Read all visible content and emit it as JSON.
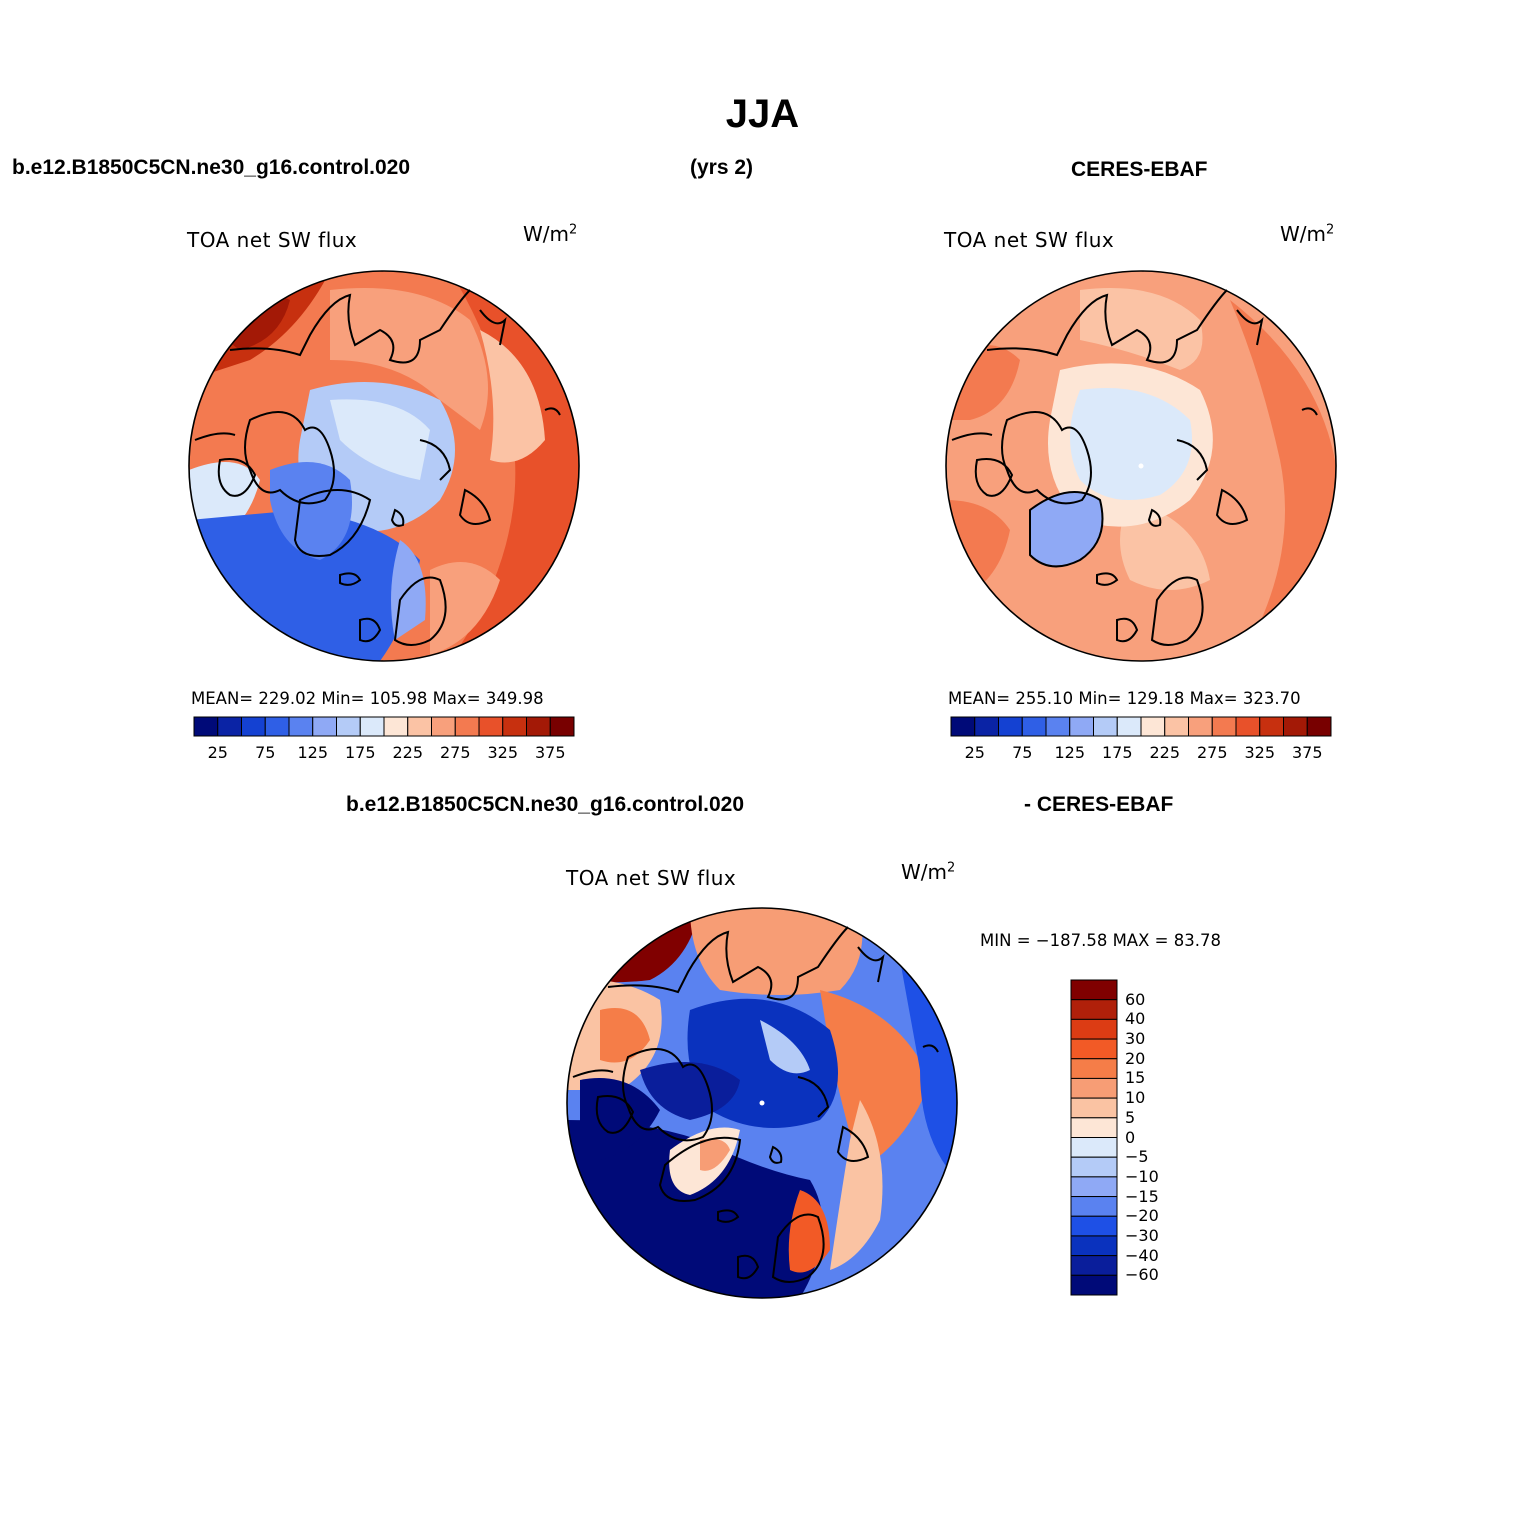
{
  "figure": {
    "title": "JJA",
    "case_name": "b.e12.B1850C5CN.ne30_g16.control.020",
    "years_label": "(yrs 2)",
    "obs_name": "CERES-EBAF",
    "diff_left_label": "b.e12.B1850C5CN.ne30_g16.control.020",
    "diff_right_label": "- CERES-EBAF"
  },
  "panels": [
    {
      "title": "TOA net SW flux",
      "units": "W/m",
      "units_exp": "2",
      "stats_text": "MEAN= 229.02   Min= 105.98   Max= 349.98",
      "mean": 229.02,
      "min": 105.98,
      "max": 349.98
    },
    {
      "title": "TOA net SW flux",
      "units": "W/m",
      "units_exp": "2",
      "stats_text": "MEAN= 255.10   Min= 129.18   Max= 323.70",
      "mean": 255.1,
      "min": 129.18,
      "max": 323.7
    },
    {
      "title": "TOA net SW flux",
      "units": "W/m",
      "units_exp": "2",
      "stats_text": "MIN = −187.58 MAX =  83.78",
      "min": -187.58,
      "max": 83.78
    }
  ],
  "colorbar_abs": {
    "tick_labels": [
      "25",
      "75",
      "125",
      "175",
      "225",
      "275",
      "325",
      "375"
    ],
    "colors": [
      "#000a78",
      "#0a23a5",
      "#1441d2",
      "#2f5fe6",
      "#5a82f0",
      "#8fa9f5",
      "#b4cbf7",
      "#dbe9fa",
      "#fde6d6",
      "#fbc3a5",
      "#f8a07c",
      "#f37a50",
      "#e8512a",
      "#c7300f",
      "#a31906",
      "#780000"
    ]
  },
  "colorbar_diff": {
    "tick_labels": [
      "60",
      "40",
      "30",
      "20",
      "15",
      "10",
      "5",
      "0",
      "−5",
      "−10",
      "−15",
      "−20",
      "−30",
      "−40",
      "−60"
    ],
    "colors": [
      "#800000",
      "#b0200a",
      "#dc3c14",
      "#f25a26",
      "#f57d48",
      "#f79d75",
      "#fac3a3",
      "#fde6d6",
      "#dbe9fa",
      "#b4cbf7",
      "#8fa9f5",
      "#5a82f0",
      "#1e50e6",
      "#0a32be",
      "#0a1e9b",
      "#000a78"
    ]
  }
}
